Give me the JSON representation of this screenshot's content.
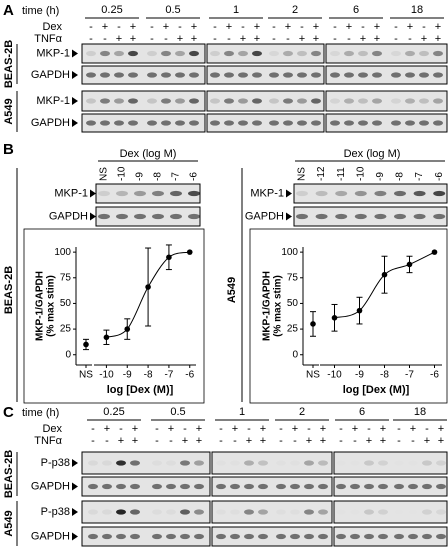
{
  "panel_a": {
    "label": "A",
    "time_label": "time (h)",
    "times": [
      "0.25",
      "0.5",
      "1",
      "2",
      "6",
      "18"
    ],
    "dex_label": "Dex",
    "tnf_label": "TNFα",
    "dex_signs": [
      "-",
      "+",
      "-",
      "+"
    ],
    "tnf_signs": [
      "-",
      "-",
      "+",
      "+"
    ],
    "cells": [
      {
        "name": "BEAS-2B",
        "blots": [
          "MKP-1",
          "GAPDH"
        ]
      },
      {
        "name": "A549",
        "blots": [
          "MKP-1",
          "GAPDH"
        ]
      }
    ]
  },
  "panel_b": {
    "label": "B",
    "blots": [
      {
        "cell": "BEAS-2B",
        "title": "Dex (log M)",
        "lanes": [
          "NS",
          "-10",
          "-9",
          "-8",
          "-7",
          "-6"
        ],
        "rows": [
          "MKP-1",
          "GAPDH"
        ]
      },
      {
        "cell": "A549",
        "title": "Dex (log M)",
        "lanes": [
          "NS",
          "-12",
          "-11",
          "-10",
          "-9",
          "-8",
          "-7",
          "-6"
        ],
        "rows": [
          "MKP-1",
          "GAPDH"
        ]
      }
    ]
  },
  "panel_c": {
    "label": "C",
    "time_label": "time (h)",
    "times": [
      "0.25",
      "0.5",
      "1",
      "2",
      "6",
      "18"
    ],
    "dex_label": "Dex",
    "tnf_label": "TNFα",
    "dex_signs": [
      "-",
      "+",
      "-",
      "+"
    ],
    "tnf_signs": [
      "-",
      "-",
      "+",
      "+"
    ],
    "cells": [
      {
        "name": "BEAS-2B",
        "blots": [
          "P-p38",
          "GAPDH"
        ]
      },
      {
        "name": "A549",
        "blots": [
          "P-p38",
          "GAPDH"
        ]
      }
    ]
  },
  "chart_data": [
    {
      "type": "scatter",
      "x_label": "log [Dex (M)]",
      "y_label": [
        "MKP-1/GAPDH",
        "(% max stim)"
      ],
      "x": [
        -10,
        -9,
        -8,
        -7,
        -6
      ],
      "series": [
        {
          "values": [
            17,
            25,
            66,
            95,
            100
          ],
          "errors": [
            7,
            10,
            38,
            12,
            null
          ],
          "color": "#000000"
        }
      ],
      "ns": {
        "label": "NS",
        "value": 10,
        "error": 5
      },
      "xlim": [
        -10.5,
        -5.7
      ],
      "ylim": [
        -10,
        105
      ],
      "xticks": [
        -10,
        -9,
        -8,
        -7,
        -6
      ],
      "yticks": [
        0,
        25,
        50,
        75,
        100
      ]
    },
    {
      "type": "scatter",
      "x_label": "log [Dex (M)]",
      "y_label": [
        "MKP-1/GAPDH",
        "(% max stim)"
      ],
      "x": [
        -10,
        -9,
        -8,
        -7,
        -6
      ],
      "series": [
        {
          "values": [
            36,
            43,
            78,
            88,
            100
          ],
          "errors": [
            13,
            13,
            18,
            8,
            null
          ],
          "color": "#000000"
        }
      ],
      "ns": {
        "label": "NS",
        "value": 30,
        "error": 12
      },
      "xlim": [
        -10.5,
        -5.7
      ],
      "ylim": [
        -10,
        105
      ],
      "xticks": [
        -10,
        -9,
        -8,
        -7,
        -6
      ],
      "yticks": [
        0,
        25,
        50,
        75,
        100
      ]
    }
  ]
}
